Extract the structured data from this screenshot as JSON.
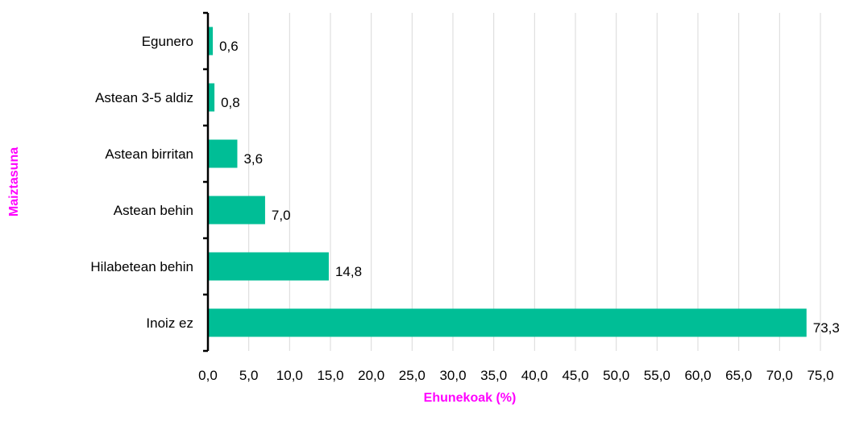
{
  "chart_data": {
    "type": "bar",
    "orientation": "horizontal",
    "title": "",
    "xlabel": "Ehunekoak (%)",
    "ylabel": "Maiztasuna",
    "categories": [
      "Egunero",
      "Astean 3-5 aldiz",
      "Astean birritan",
      "Astean behin",
      "Hilabetean behin",
      "Inoiz ez"
    ],
    "values": [
      0.6,
      0.8,
      3.6,
      7.0,
      14.8,
      73.3
    ],
    "value_labels": [
      "0,6",
      "0,8",
      "3,6",
      "7,0",
      "14,8",
      "73,3"
    ],
    "xlim": [
      0,
      75
    ],
    "x_ticks": [
      0,
      5,
      10,
      15,
      20,
      25,
      30,
      35,
      40,
      45,
      50,
      55,
      60,
      65,
      70,
      75
    ],
    "x_tick_labels": [
      "0,0",
      "5,0",
      "10,0",
      "15,0",
      "20,0",
      "25,0",
      "30,0",
      "35,0",
      "40,0",
      "45,0",
      "50,0",
      "55,0",
      "60,0",
      "65,0",
      "70,0",
      "75,0"
    ],
    "grid": true,
    "legend": "none",
    "colors": {
      "bar": "#00BE96",
      "axis_title": "#FF00FF",
      "gridline": "#D9D9D9",
      "axis": "#000000"
    }
  }
}
